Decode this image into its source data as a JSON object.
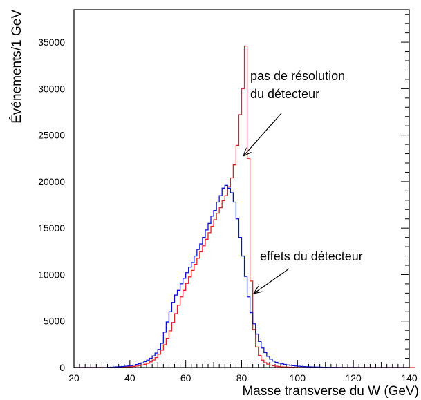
{
  "chart_data": {
    "type": "histogram",
    "xlabel": "Masse transverse du W (GeV)",
    "ylabel": "Événements/1 GeV",
    "xlim": [
      20,
      140
    ],
    "ylim": [
      0,
      38500
    ],
    "bin_width": 1,
    "x_ticks": [
      20,
      40,
      60,
      80,
      100,
      120,
      140
    ],
    "y_ticks": [
      0,
      5000,
      10000,
      15000,
      20000,
      25000,
      30000,
      35000
    ],
    "grid": false,
    "annotations": [
      {
        "lines": [
          "pas de résolution",
          "du détecteur"
        ],
        "target_series": "red",
        "arrow_to": [
          80.8,
          22800
        ]
      },
      {
        "lines": [
          "effets du détecteur"
        ],
        "target_series": "blue",
        "arrow_to": [
          84.5,
          8000
        ]
      }
    ],
    "series": [
      {
        "color": "#e0202a",
        "x_start": 20,
        "values": [
          0,
          0,
          0,
          0,
          0,
          0,
          0,
          0,
          0,
          0,
          0,
          0,
          5,
          8,
          12,
          18,
          26,
          38,
          52,
          70,
          95,
          125,
          160,
          210,
          270,
          350,
          460,
          610,
          810,
          1070,
          1420,
          1870,
          2450,
          3150,
          3950,
          4850,
          5800,
          6700,
          7600,
          8300,
          9050,
          9750,
          10450,
          11100,
          11750,
          12450,
          13100,
          13800,
          14500,
          15200,
          15900,
          16600,
          17200,
          17950,
          18500,
          19450,
          20400,
          21800,
          23900,
          27200,
          30000,
          34600,
          22500,
          9300,
          4100,
          2200,
          1300,
          800,
          520,
          360,
          260,
          190,
          140,
          100,
          75,
          55,
          40,
          30,
          22,
          16,
          12,
          9,
          7,
          5,
          4,
          3,
          2,
          2,
          1,
          1,
          1,
          1,
          0,
          0,
          0,
          0,
          0,
          0,
          0,
          0,
          0,
          0,
          0,
          0,
          0,
          0,
          0,
          0,
          0,
          0,
          0,
          0,
          0,
          0,
          0,
          0,
          0,
          0,
          0,
          0,
          0,
          0
        ]
      },
      {
        "color": "#1010d0",
        "x_start": 20,
        "values": [
          0,
          0,
          0,
          0,
          0,
          0,
          0,
          0,
          0,
          0,
          0,
          0,
          25,
          35,
          50,
          70,
          90,
          110,
          140,
          170,
          210,
          260,
          320,
          400,
          500,
          630,
          800,
          1000,
          1250,
          1550,
          1950,
          2600,
          3800,
          4900,
          6000,
          7000,
          7800,
          8300,
          9000,
          9600,
          10200,
          10800,
          11300,
          12000,
          12700,
          13300,
          14000,
          14800,
          15500,
          16300,
          16900,
          17800,
          18500,
          19300,
          19600,
          19300,
          18800,
          17800,
          16000,
          14000,
          12000,
          9800,
          7600,
          5900,
          4700,
          3600,
          2800,
          2100,
          1600,
          1200,
          900,
          700,
          560,
          460,
          390,
          330,
          280,
          240,
          200,
          170,
          140,
          120,
          100,
          85,
          72,
          60,
          50,
          42,
          35,
          30,
          25,
          21,
          18,
          15,
          12,
          10,
          8,
          7,
          6,
          5,
          4,
          3,
          2,
          2,
          1,
          1,
          1,
          1,
          1,
          1,
          1,
          1,
          1,
          1,
          0,
          0,
          0,
          0,
          0,
          0
        ]
      }
    ]
  }
}
